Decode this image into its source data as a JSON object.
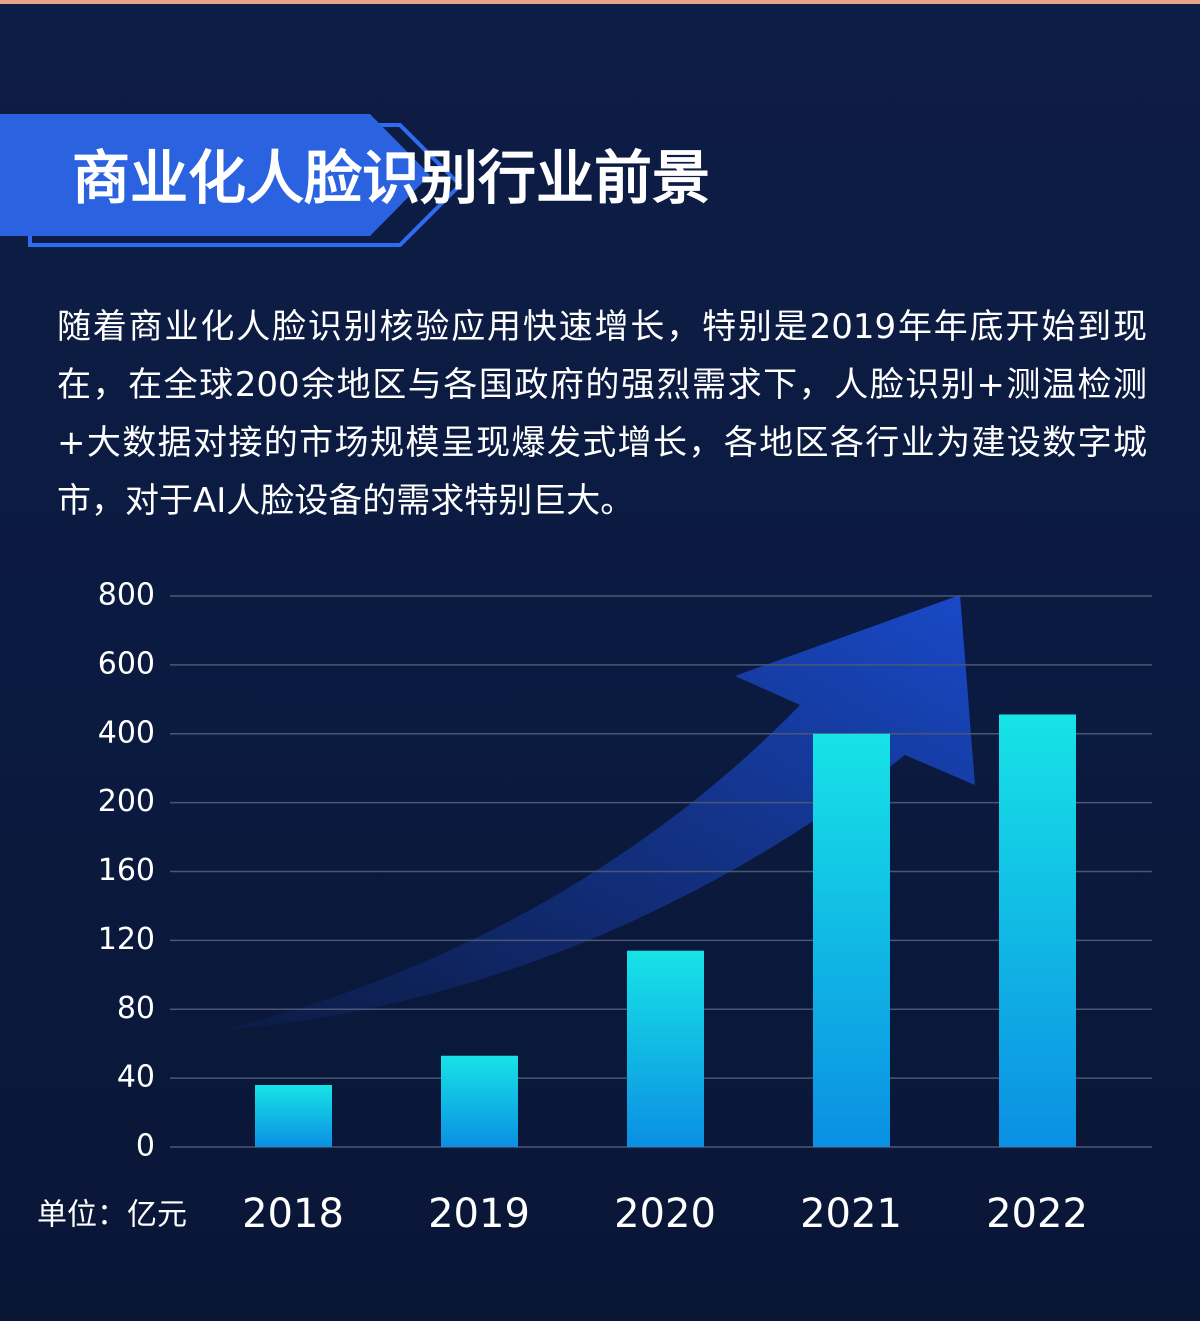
{
  "chart_data": {
    "type": "bar",
    "title": "商业化人脸识别行业前景",
    "description": "随着商业化人脸识别核验应用快速增长，特别是2019年年底开始到现在，在全球200余地区与各国政府的强烈需求下，人脸识别+测温检测+大数据对接的市场规模呈现爆发式增长，各地区各行业为建设数字城市，对于AI人脸设备的需求特别巨大。",
    "y_label": "单位：亿元",
    "categories": [
      "2018",
      "2019",
      "2020",
      "2021",
      "2022"
    ],
    "values": [
      36,
      53,
      114,
      400,
      456
    ],
    "color": "#17e3e6",
    "ylim": [
      0,
      800
    ],
    "yticks": [
      0,
      40,
      80,
      120,
      160,
      200,
      400,
      600,
      800
    ],
    "grid": true
  }
}
